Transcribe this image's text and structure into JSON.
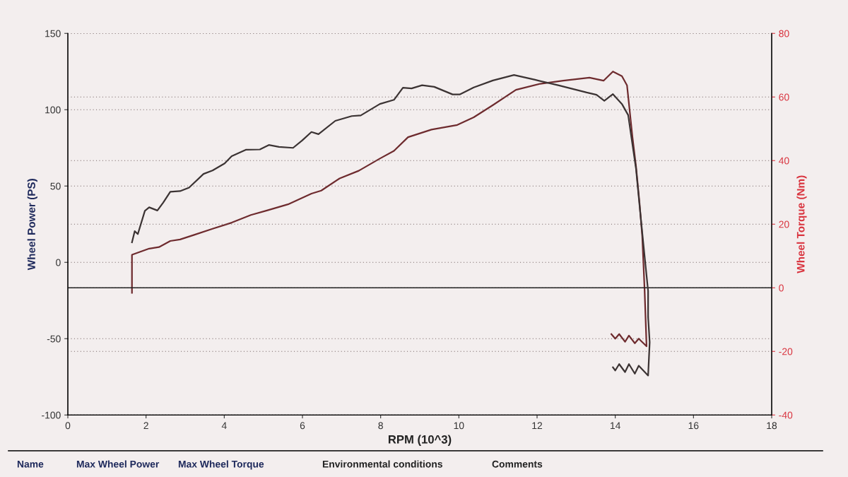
{
  "chart_data": {
    "type": "line",
    "xlabel": "RPM (10^3)",
    "ylabel": "Wheel Power (PS)",
    "y2label": "Wheel Torque (Nm)",
    "xlim": [
      0,
      18
    ],
    "xticks": [
      0,
      2,
      4,
      6,
      8,
      10,
      12,
      14,
      16,
      18
    ],
    "ylim": [
      -100,
      150
    ],
    "yticks": [
      -100,
      -50,
      0,
      50,
      100,
      150
    ],
    "y2lim": [
      -40,
      80
    ],
    "y2ticks": [
      -40,
      -20,
      0,
      20,
      40,
      60,
      80
    ],
    "grid": "y",
    "marker": "none",
    "line_style": "solid",
    "ref_lines": [
      {
        "axis": "y2",
        "value": 0,
        "color": "#222222",
        "line_style": "solid"
      }
    ],
    "series": [
      {
        "color": "#6e2b2e",
        "x": [
          1.64,
          1.64,
          2.08,
          2.33,
          2.62,
          2.87,
          3.23,
          3.7,
          4.19,
          4.68,
          5.09,
          5.63,
          6.23,
          6.48,
          6.95,
          7.44,
          7.98,
          8.34,
          8.7,
          9.3,
          9.96,
          10.38,
          10.87,
          11.46,
          12.08,
          12.67,
          13.34,
          13.7,
          13.94,
          14.17,
          14.3,
          14.44,
          14.53,
          14.62,
          14.69,
          14.75,
          14.8,
          14.6,
          14.5,
          14.35,
          14.25,
          14.1,
          14.0,
          13.9
        ],
        "values": [
          -20,
          5,
          9,
          10,
          14,
          15,
          18,
          22,
          26,
          31,
          34,
          38,
          45,
          47,
          55,
          60,
          68,
          73,
          82,
          87,
          90,
          95,
          103,
          113,
          117,
          119,
          121,
          119,
          125,
          122,
          116,
          82,
          63,
          39,
          17,
          -18,
          -55,
          -50,
          -53,
          -48,
          -52,
          -47,
          -50,
          -47
        ]
      },
      {
        "color": "#3b3333",
        "axis": "y2",
        "x": [
          1.64,
          1.71,
          1.79,
          1.97,
          2.08,
          2.29,
          2.44,
          2.62,
          2.87,
          3.1,
          3.47,
          3.7,
          4.01,
          4.19,
          4.55,
          4.91,
          5.14,
          5.4,
          5.76,
          5.99,
          6.23,
          6.41,
          6.84,
          7.26,
          7.49,
          7.98,
          8.34,
          8.57,
          8.79,
          9.06,
          9.37,
          9.84,
          10.02,
          10.38,
          10.87,
          11.41,
          11.95,
          12.54,
          13.27,
          13.52,
          13.72,
          13.94,
          14.17,
          14.33,
          14.42,
          14.53,
          14.62,
          14.75,
          14.84,
          14.84,
          14.88,
          14.84,
          14.6,
          14.5,
          14.35,
          14.25,
          14.1,
          14.0,
          13.94
        ],
        "values": [
          14.3,
          17.8,
          16.9,
          24.2,
          25.3,
          24.3,
          26.8,
          30.2,
          30.4,
          31.5,
          35.8,
          36.9,
          39.1,
          41.4,
          43.4,
          43.5,
          44.9,
          44.3,
          44.0,
          46.3,
          49.0,
          48.3,
          52.5,
          54.0,
          54.2,
          57.8,
          59.1,
          62.9,
          62.7,
          63.7,
          63.2,
          60.8,
          60.8,
          63.0,
          65.2,
          66.9,
          65.4,
          63.7,
          61.4,
          60.7,
          58.8,
          60.9,
          57.8,
          54.3,
          46.7,
          37.5,
          26.0,
          9.9,
          -1.0,
          -9.2,
          -17.1,
          -27.6,
          -24.5,
          -27,
          -24,
          -26.5,
          -24,
          -26,
          -25
        ]
      }
    ],
    "annotations": [
      "Name",
      "Max Wheel Power",
      "Max Wheel Torque",
      "Environmental conditions",
      "Comments"
    ]
  }
}
